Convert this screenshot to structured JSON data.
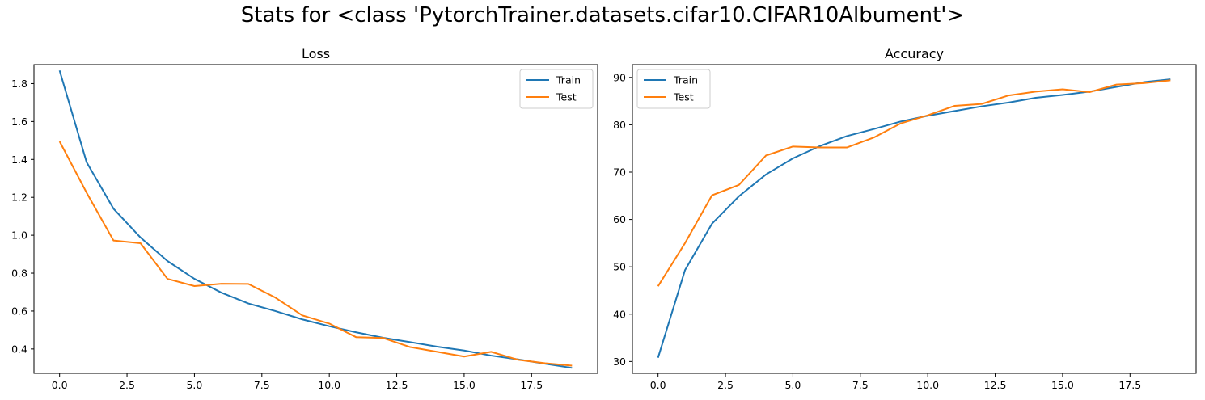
{
  "figure": {
    "title": "Stats for <class 'PytorchTrainer.datasets.cifar10.CIFAR10Albument'>"
  },
  "colors": {
    "train": "#1f77b4",
    "test": "#ff7f0e"
  },
  "chart_data": [
    {
      "type": "line",
      "title": "Loss",
      "xlabel": "",
      "ylabel": "",
      "xlim": [
        -0.95,
        19.95
      ],
      "ylim": [
        0.2715,
        1.9
      ],
      "xticks": [
        0,
        2.5,
        5,
        7.5,
        10,
        12.5,
        15,
        17.5
      ],
      "xtick_labels": [
        "0.0",
        "2.5",
        "5.0",
        "7.5",
        "10.0",
        "12.5",
        "15.0",
        "17.5"
      ],
      "yticks": [
        0.4,
        0.6,
        0.8,
        1.0,
        1.2,
        1.4,
        1.6,
        1.8
      ],
      "ytick_labels": [
        "0.4",
        "0.6",
        "0.8",
        "1.0",
        "1.2",
        "1.4",
        "1.6",
        "1.8"
      ],
      "legend_position": "upper right",
      "grid": false,
      "x": [
        0,
        1,
        2,
        3,
        4,
        5,
        6,
        7,
        8,
        9,
        10,
        11,
        12,
        13,
        14,
        15,
        16,
        17,
        18,
        19
      ],
      "series": [
        {
          "name": "Train",
          "color": "#1f77b4",
          "values": [
            1.869,
            1.386,
            1.14,
            0.988,
            0.864,
            0.77,
            0.697,
            0.64,
            0.6,
            0.556,
            0.52,
            0.488,
            0.459,
            0.436,
            0.412,
            0.392,
            0.365,
            0.345,
            0.322,
            0.3
          ]
        },
        {
          "name": "Test",
          "color": "#ff7f0e",
          "values": [
            1.495,
            1.225,
            0.972,
            0.958,
            0.77,
            0.732,
            0.744,
            0.743,
            0.671,
            0.577,
            0.534,
            0.462,
            0.458,
            0.41,
            0.385,
            0.36,
            0.385,
            0.343,
            0.325,
            0.312
          ]
        }
      ]
    },
    {
      "type": "line",
      "title": "Accuracy",
      "xlabel": "",
      "ylabel": "",
      "xlim": [
        -0.95,
        19.95
      ],
      "ylim": [
        27.5,
        92.7
      ],
      "xticks": [
        0,
        2.5,
        5,
        7.5,
        10,
        12.5,
        15,
        17.5
      ],
      "xtick_labels": [
        "0.0",
        "2.5",
        "5.0",
        "7.5",
        "10.0",
        "12.5",
        "15.0",
        "17.5"
      ],
      "yticks": [
        30,
        40,
        50,
        60,
        70,
        80,
        90
      ],
      "ytick_labels": [
        "30",
        "40",
        "50",
        "60",
        "70",
        "80",
        "90"
      ],
      "legend_position": "upper left",
      "grid": false,
      "x": [
        0,
        1,
        2,
        3,
        4,
        5,
        6,
        7,
        8,
        9,
        10,
        11,
        12,
        13,
        14,
        15,
        16,
        17,
        18,
        19
      ],
      "series": [
        {
          "name": "Train",
          "color": "#1f77b4",
          "values": [
            30.8,
            49.3,
            59.1,
            64.9,
            69.5,
            72.9,
            75.5,
            77.6,
            79.1,
            80.7,
            81.9,
            82.9,
            83.9,
            84.7,
            85.7,
            86.3,
            87.0,
            88.0,
            89.0,
            89.6
          ]
        },
        {
          "name": "Test",
          "color": "#ff7f0e",
          "values": [
            45.9,
            55.0,
            65.1,
            67.3,
            73.5,
            75.4,
            75.2,
            75.2,
            77.3,
            80.3,
            82.0,
            84.0,
            84.4,
            86.2,
            87.0,
            87.5,
            86.9,
            88.5,
            88.8,
            89.4
          ]
        }
      ]
    }
  ]
}
